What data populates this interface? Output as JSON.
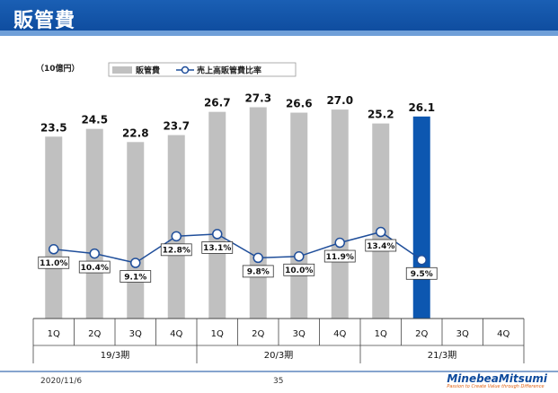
{
  "page": {
    "title": "販管費",
    "date": "2020/11/6",
    "page_number": "35",
    "logo_name": "MinebeaMitsumi",
    "logo_tagline": "Passion to Create Value through Difference"
  },
  "colors": {
    "bar": "#c0c0c0",
    "bar_highlight": "#0d57b0",
    "line": "#1f4e9a"
  },
  "chart_data": {
    "type": "bar+line",
    "unit_label": "（10億円）",
    "legend": {
      "bar": "販管費",
      "line": "売上高販管費比率"
    },
    "categories": [
      "1Q",
      "2Q",
      "3Q",
      "4Q",
      "1Q",
      "2Q",
      "3Q",
      "4Q",
      "1Q",
      "2Q",
      "3Q",
      "4Q"
    ],
    "groups": [
      "19/3期",
      "20/3期",
      "21/3期"
    ],
    "bar_values": [
      23.5,
      24.5,
      22.8,
      23.7,
      26.7,
      27.3,
      26.6,
      27.0,
      25.2,
      26.1,
      null,
      null
    ],
    "bar_labels": [
      "23.5",
      "24.5",
      "22.8",
      "23.7",
      "26.7",
      "27.3",
      "26.6",
      "27.0",
      "25.2",
      "26.1",
      "",
      ""
    ],
    "highlight_index": 9,
    "ratio_values": [
      11.0,
      10.4,
      9.1,
      12.8,
      13.1,
      9.8,
      10.0,
      11.9,
      13.4,
      9.5,
      null,
      null
    ],
    "ratio_labels": [
      "11.0%",
      "10.4%",
      "9.1%",
      "12.8%",
      "13.1%",
      "9.8%",
      "10.0%",
      "11.9%",
      "13.4%",
      "9.5%",
      "",
      ""
    ]
  }
}
